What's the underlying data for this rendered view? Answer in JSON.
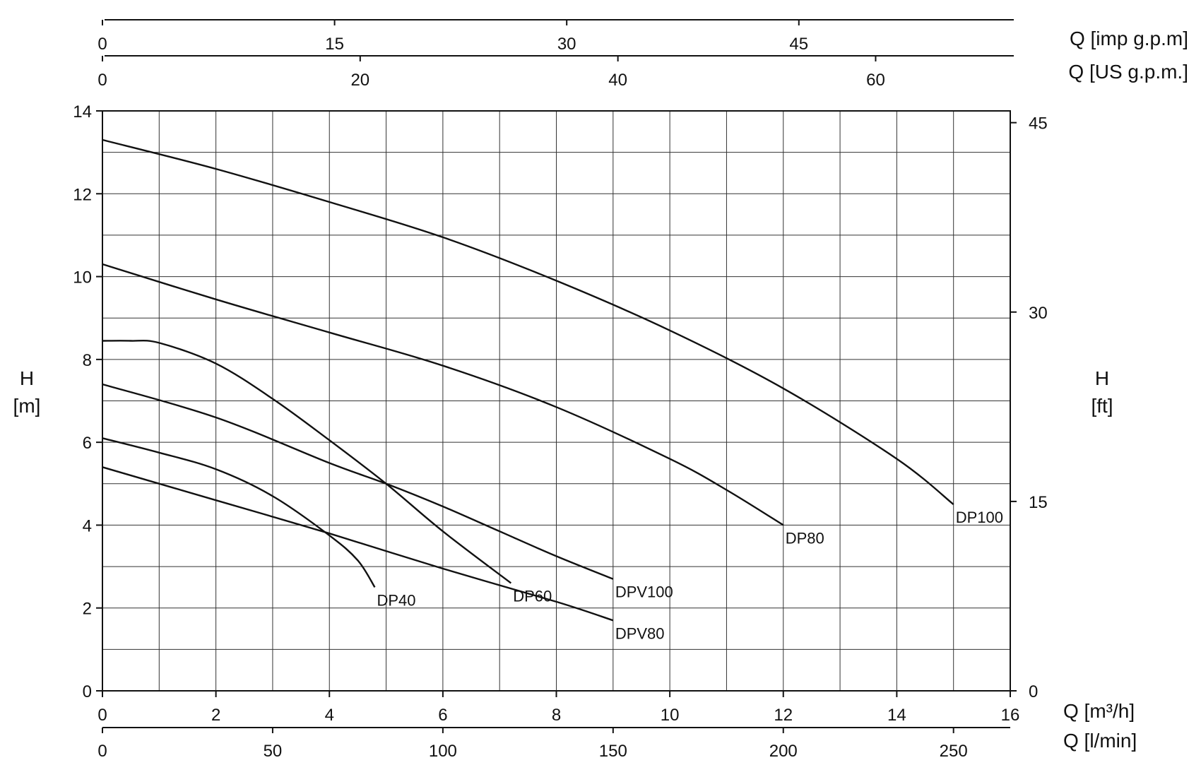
{
  "chart_data": {
    "type": "line",
    "title": "",
    "x_axis": {
      "label": "Q [m³/h]",
      "range": [
        0,
        16
      ],
      "ticks": [
        "0",
        "2",
        "4",
        "6",
        "8",
        "10",
        "12",
        "14",
        "16"
      ]
    },
    "y_axis": {
      "label_line1": "H",
      "label_line2": "[m]",
      "range": [
        0,
        14
      ],
      "ticks": [
        "0",
        "2",
        "4",
        "6",
        "8",
        "10",
        "12",
        "14"
      ]
    },
    "y_axis_right": {
      "label_line1": "H",
      "label_line2": "[ft]",
      "ticks": [
        "0",
        "15",
        "30",
        "45"
      ]
    },
    "secondary_x_axes": {
      "lmin": {
        "label": "Q [l/min]",
        "ticks": [
          "0",
          "50",
          "100",
          "150",
          "200",
          "250"
        ]
      },
      "us_gpm": {
        "label": "Q [US g.p.m.]",
        "ticks": [
          "0",
          "20",
          "40",
          "60"
        ]
      },
      "imp_gpm": {
        "label": "Q [imp g.p.m]",
        "ticks": [
          "0",
          "15",
          "30",
          "45"
        ]
      }
    },
    "grid": true,
    "series": [
      {
        "name": "DP100",
        "points": [
          [
            0,
            13.3
          ],
          [
            2,
            12.6
          ],
          [
            4,
            11.8
          ],
          [
            6,
            10.95
          ],
          [
            8,
            9.9
          ],
          [
            10,
            8.7
          ],
          [
            12,
            7.3
          ],
          [
            14,
            5.6
          ],
          [
            15,
            4.5
          ]
        ]
      },
      {
        "name": "DP80",
        "points": [
          [
            0,
            10.3
          ],
          [
            2,
            9.45
          ],
          [
            4,
            8.65
          ],
          [
            6,
            7.85
          ],
          [
            8,
            6.85
          ],
          [
            10,
            5.6
          ],
          [
            11,
            4.85
          ],
          [
            12,
            4.0
          ]
        ]
      },
      {
        "name": "DP60",
        "points": [
          [
            0,
            8.45
          ],
          [
            0.5,
            8.45
          ],
          [
            1,
            8.4
          ],
          [
            2,
            7.9
          ],
          [
            3,
            7.05
          ],
          [
            4,
            6.05
          ],
          [
            5,
            5.0
          ],
          [
            6,
            3.85
          ],
          [
            7.2,
            2.6
          ]
        ]
      },
      {
        "name": "DPV100",
        "points": [
          [
            0,
            7.4
          ],
          [
            2,
            6.6
          ],
          [
            4,
            5.5
          ],
          [
            5,
            5.0
          ],
          [
            6,
            4.45
          ],
          [
            7,
            3.85
          ],
          [
            8,
            3.25
          ],
          [
            9,
            2.7
          ]
        ]
      },
      {
        "name": "DP40",
        "points": [
          [
            0,
            6.1
          ],
          [
            1,
            5.75
          ],
          [
            2,
            5.35
          ],
          [
            3,
            4.7
          ],
          [
            4,
            3.75
          ],
          [
            4.5,
            3.15
          ],
          [
            4.8,
            2.5
          ]
        ]
      },
      {
        "name": "DPV80",
        "points": [
          [
            0,
            5.4
          ],
          [
            2,
            4.6
          ],
          [
            4,
            3.8
          ],
          [
            6,
            2.95
          ],
          [
            8,
            2.15
          ],
          [
            9,
            1.7
          ]
        ]
      }
    ]
  }
}
